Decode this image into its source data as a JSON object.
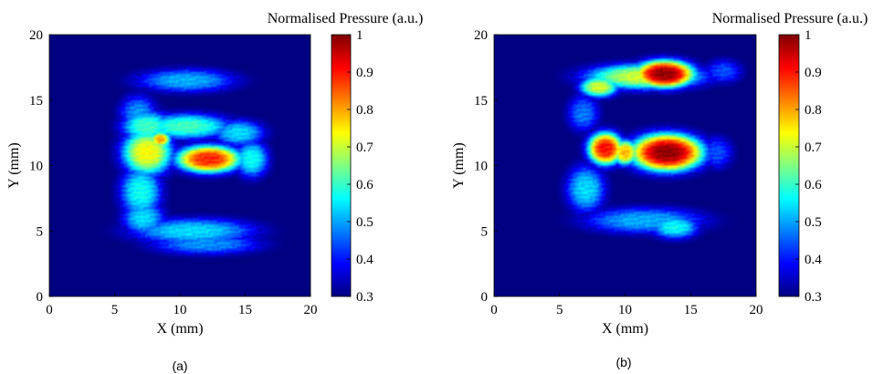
{
  "chart_data": [
    {
      "type": "heatmap",
      "caption": "(a)",
      "xlabel": "X (mm)",
      "ylabel": "Y (mm)",
      "xlim": [
        0,
        20
      ],
      "ylim": [
        0,
        20
      ],
      "xticks": [
        0,
        5,
        10,
        15,
        20
      ],
      "yticks": [
        0,
        5,
        10,
        15,
        20
      ],
      "colorbar": {
        "title": "Normalised Pressure (a.u.)",
        "range": [
          0.3,
          1
        ],
        "ticks": [
          0.3,
          0.4,
          0.5,
          0.6,
          0.7,
          0.8,
          0.9,
          1
        ],
        "tick_labels": [
          "0.3",
          "0.4",
          "0.5",
          "0.6",
          "0.7",
          "0.8",
          "0.9",
          "1"
        ],
        "colormap": "jet"
      },
      "background_value": 0.3,
      "blobs": [
        {
          "x": 10.5,
          "y": 16.5,
          "rx": 3.8,
          "ry": 0.9,
          "value": 0.52
        },
        {
          "x": 6.8,
          "y": 14.0,
          "rx": 1.4,
          "ry": 1.4,
          "value": 0.5
        },
        {
          "x": 7.5,
          "y": 13.0,
          "rx": 2.0,
          "ry": 1.2,
          "value": 0.62
        },
        {
          "x": 10.5,
          "y": 13.0,
          "rx": 3.5,
          "ry": 1.0,
          "value": 0.62
        },
        {
          "x": 14.5,
          "y": 12.5,
          "rx": 2.0,
          "ry": 1.0,
          "value": 0.55
        },
        {
          "x": 7.5,
          "y": 11.0,
          "rx": 2.0,
          "ry": 1.8,
          "value": 0.75
        },
        {
          "x": 8.5,
          "y": 12.0,
          "rx": 0.8,
          "ry": 0.6,
          "value": 0.82
        },
        {
          "x": 12.2,
          "y": 10.5,
          "rx": 2.6,
          "ry": 1.1,
          "value": 0.9
        },
        {
          "x": 15.5,
          "y": 10.5,
          "rx": 1.3,
          "ry": 1.4,
          "value": 0.58
        },
        {
          "x": 7.0,
          "y": 8.0,
          "rx": 1.6,
          "ry": 2.0,
          "value": 0.58
        },
        {
          "x": 7.2,
          "y": 6.0,
          "rx": 1.6,
          "ry": 1.3,
          "value": 0.55
        },
        {
          "x": 11.0,
          "y": 5.0,
          "rx": 4.8,
          "ry": 1.0,
          "value": 0.55
        },
        {
          "x": 12.0,
          "y": 4.0,
          "rx": 4.2,
          "ry": 0.8,
          "value": 0.5
        }
      ]
    },
    {
      "type": "heatmap",
      "caption": "(b)",
      "xlabel": "X (mm)",
      "ylabel": "Y (mm)",
      "xlim": [
        0,
        20
      ],
      "ylim": [
        0,
        20
      ],
      "xticks": [
        0,
        5,
        10,
        15,
        20
      ],
      "yticks": [
        0,
        5,
        10,
        15,
        20
      ],
      "colorbar": {
        "title": "Normalised Pressure (a.u.)",
        "range": [
          0.3,
          1
        ],
        "ticks": [
          0.3,
          0.4,
          0.5,
          0.6,
          0.7,
          0.8,
          0.9,
          1
        ],
        "tick_labels": [
          "0.3",
          "0.4",
          "0.5",
          "0.6",
          "0.7",
          "0.8",
          "0.9",
          "1"
        ],
        "colormap": "jet"
      },
      "background_value": 0.3,
      "blobs": [
        {
          "x": 11.5,
          "y": 16.8,
          "rx": 4.6,
          "ry": 1.0,
          "value": 0.72
        },
        {
          "x": 13.0,
          "y": 17.0,
          "rx": 2.4,
          "ry": 1.1,
          "value": 1.0
        },
        {
          "x": 8.0,
          "y": 16.0,
          "rx": 1.5,
          "ry": 0.8,
          "value": 0.72
        },
        {
          "x": 17.5,
          "y": 17.2,
          "rx": 1.4,
          "ry": 0.9,
          "value": 0.45
        },
        {
          "x": 6.8,
          "y": 14.0,
          "rx": 1.2,
          "ry": 1.4,
          "value": 0.48
        },
        {
          "x": 8.5,
          "y": 11.3,
          "rx": 1.4,
          "ry": 1.3,
          "value": 0.92
        },
        {
          "x": 10.0,
          "y": 11.0,
          "rx": 1.0,
          "ry": 1.0,
          "value": 0.8
        },
        {
          "x": 13.2,
          "y": 11.0,
          "rx": 2.9,
          "ry": 1.5,
          "value": 1.0
        },
        {
          "x": 17.0,
          "y": 11.0,
          "rx": 1.2,
          "ry": 1.2,
          "value": 0.45
        },
        {
          "x": 7.0,
          "y": 8.2,
          "rx": 1.5,
          "ry": 1.8,
          "value": 0.55
        },
        {
          "x": 11.5,
          "y": 5.8,
          "rx": 4.6,
          "ry": 1.0,
          "value": 0.52
        },
        {
          "x": 13.8,
          "y": 5.3,
          "rx": 1.8,
          "ry": 0.9,
          "value": 0.58
        }
      ]
    }
  ]
}
